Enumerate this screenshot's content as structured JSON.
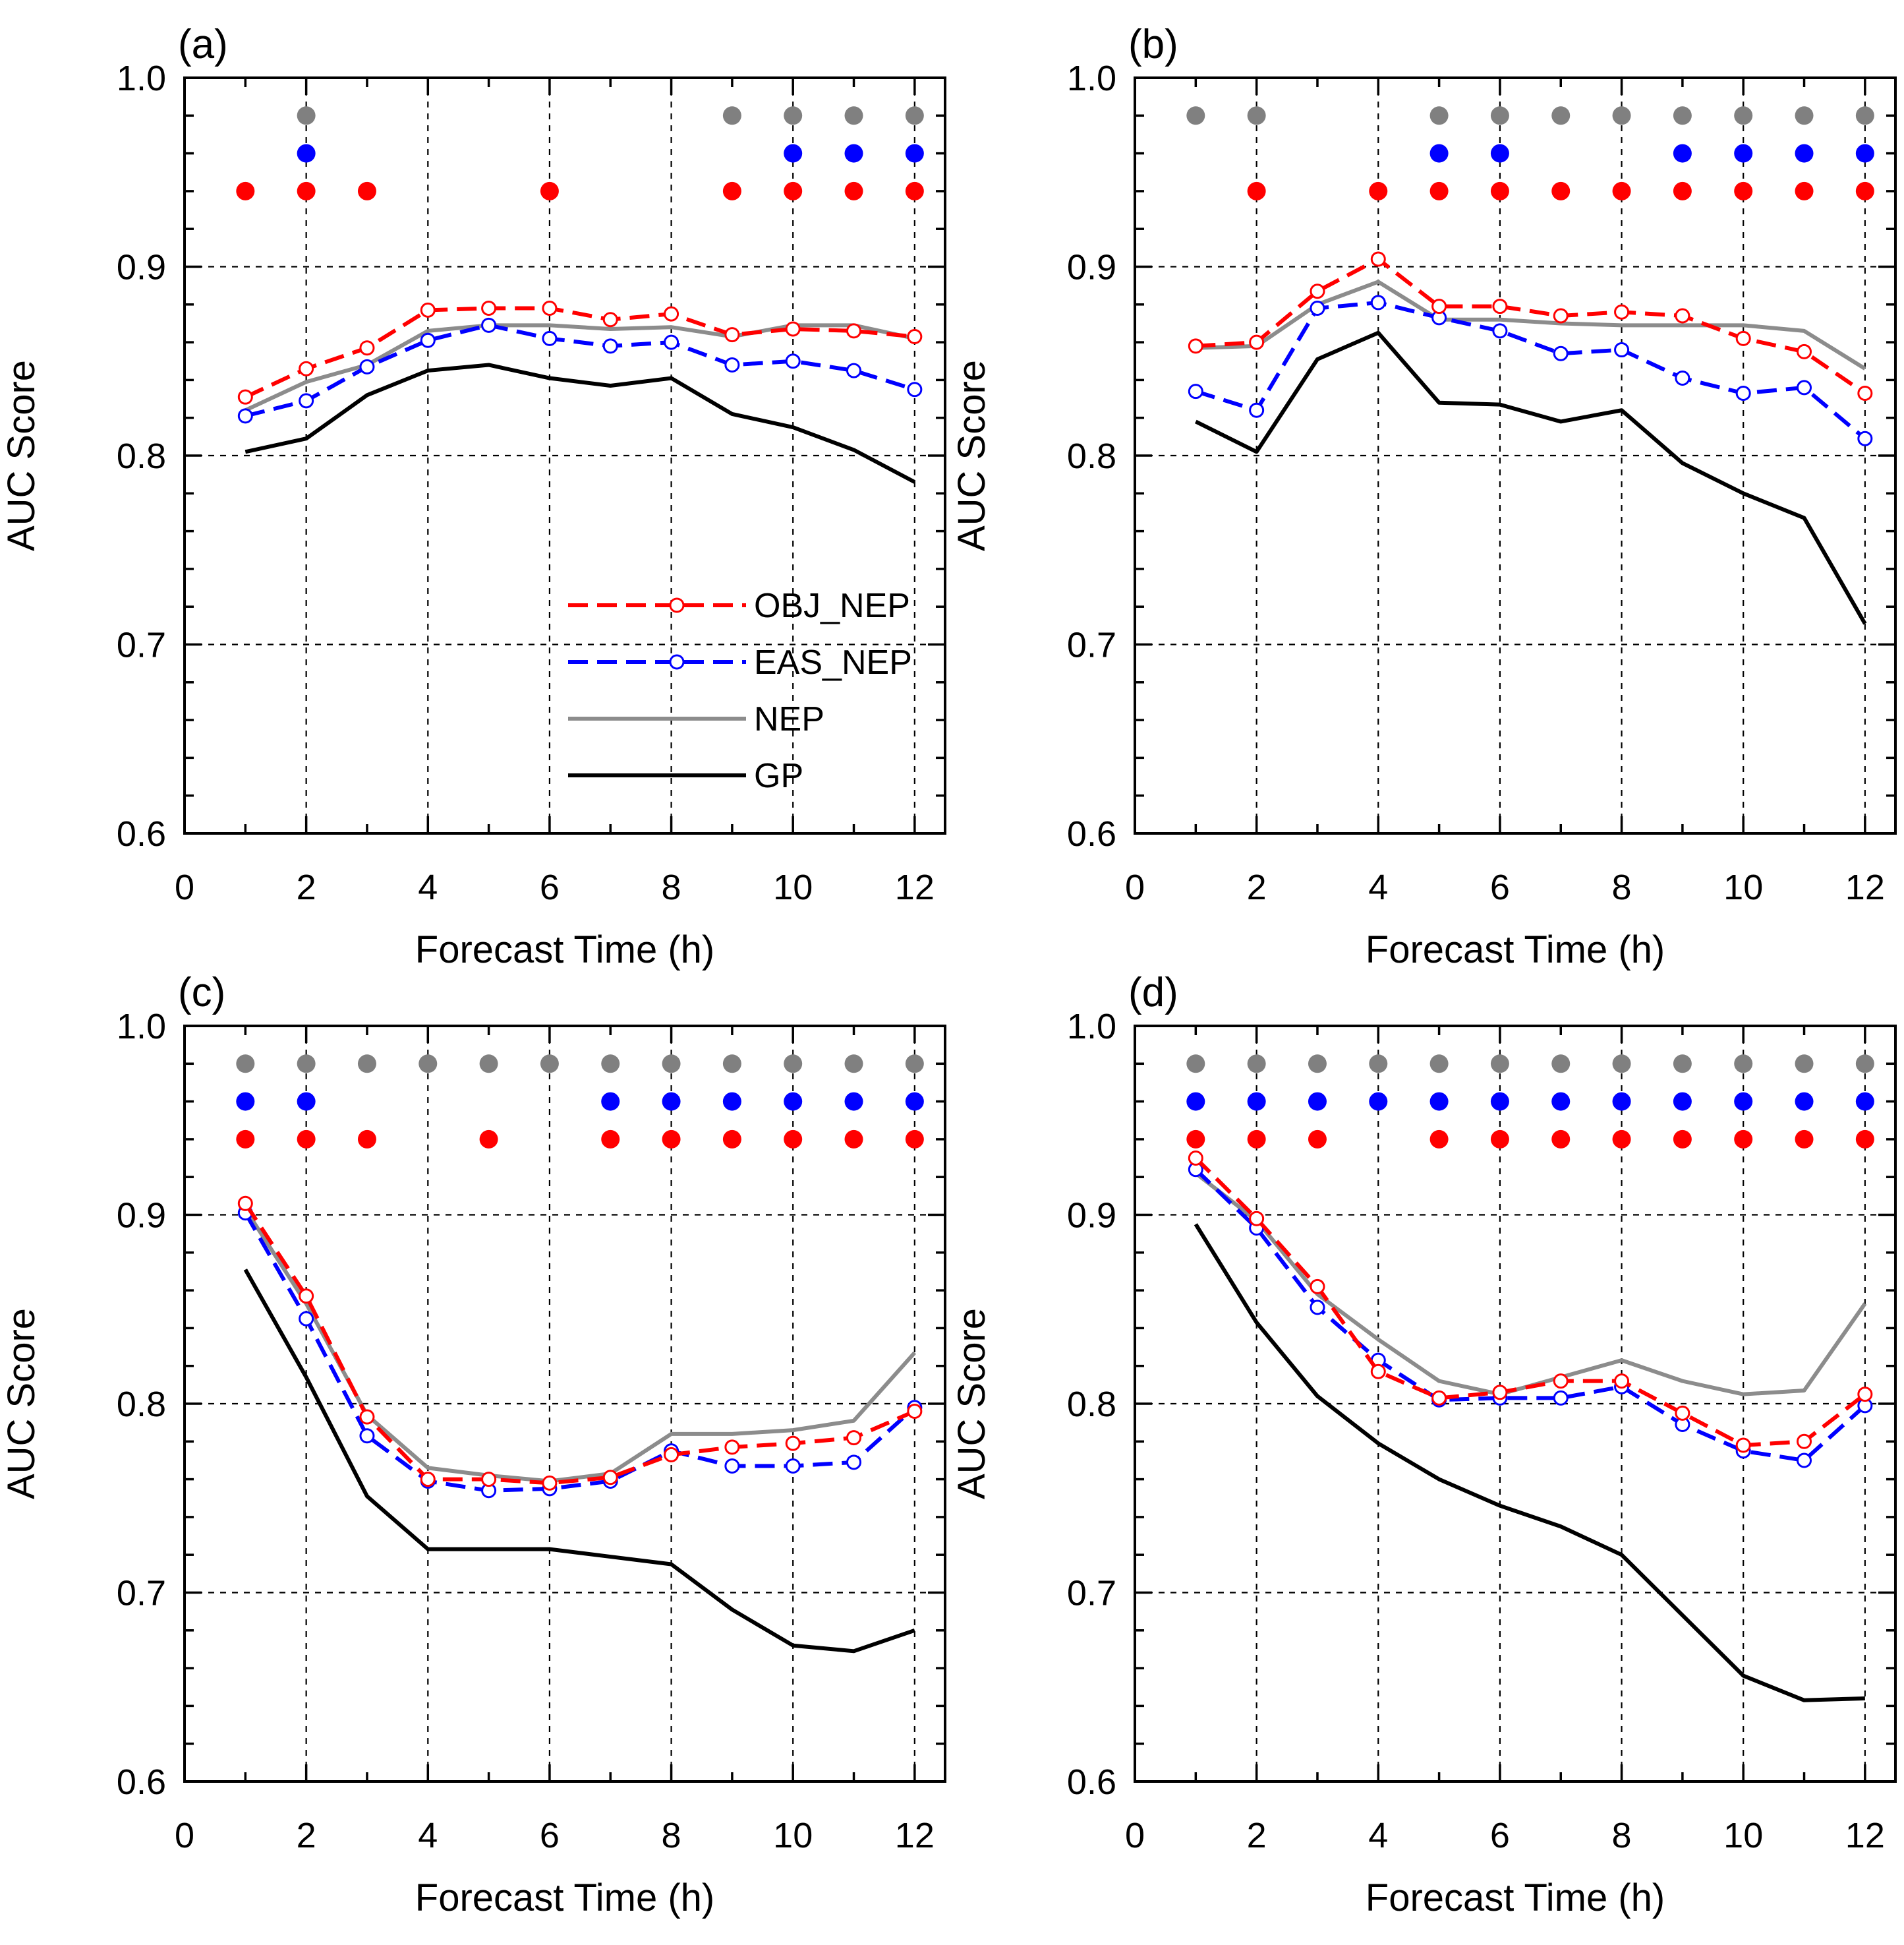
{
  "chart_data": [
    {
      "type": "line",
      "title": "(a)",
      "xlabel": "Forecast Time (h)",
      "ylabel": "AUC Score",
      "xlim": [
        0,
        12.5
      ],
      "ylim": [
        0.6,
        1.0
      ],
      "xticks": [
        "0",
        "2",
        "4",
        "6",
        "8",
        "10",
        "12"
      ],
      "yticks": [
        "0.6",
        "0.7",
        "0.8",
        "0.9",
        "1.0"
      ],
      "grid": true,
      "legend": "inside-center-right",
      "x": [
        1,
        2,
        3,
        4,
        5,
        6,
        7,
        8,
        9,
        10,
        11,
        12
      ],
      "series": [
        {
          "name": "OBJ_NEP",
          "values": [
            0.831,
            0.846,
            0.857,
            0.877,
            0.878,
            0.878,
            0.872,
            0.875,
            0.864,
            0.867,
            0.866,
            0.863
          ]
        },
        {
          "name": "EAS_NEP",
          "values": [
            0.821,
            0.829,
            0.847,
            0.861,
            0.869,
            0.862,
            0.858,
            0.86,
            0.848,
            0.85,
            0.845,
            0.835
          ]
        },
        {
          "name": "NEP",
          "values": [
            0.824,
            0.839,
            0.848,
            0.866,
            0.869,
            0.869,
            0.867,
            0.868,
            0.863,
            0.869,
            0.869,
            0.862
          ]
        },
        {
          "name": "GP",
          "values": [
            0.802,
            0.809,
            0.832,
            0.845,
            0.848,
            0.841,
            0.837,
            0.841,
            0.822,
            0.815,
            0.803,
            0.786
          ]
        }
      ],
      "significance": {
        "gray": [
          2,
          9,
          10,
          11,
          12
        ],
        "blue": [
          2,
          10,
          11,
          12
        ],
        "red": [
          1,
          2,
          3,
          6,
          9,
          10,
          11,
          12
        ]
      }
    },
    {
      "type": "line",
      "title": "(b)",
      "xlabel": "Forecast Time (h)",
      "ylabel": "AUC Score",
      "xlim": [
        0,
        12.5
      ],
      "ylim": [
        0.6,
        1.0
      ],
      "xticks": [
        "0",
        "2",
        "4",
        "6",
        "8",
        "10",
        "12"
      ],
      "yticks": [
        "0.6",
        "0.7",
        "0.8",
        "0.9",
        "1.0"
      ],
      "grid": true,
      "x": [
        1,
        2,
        3,
        4,
        5,
        6,
        7,
        8,
        9,
        10,
        11,
        12
      ],
      "series": [
        {
          "name": "OBJ_NEP",
          "values": [
            0.858,
            0.86,
            0.887,
            0.904,
            0.879,
            0.879,
            0.874,
            0.876,
            0.874,
            0.862,
            0.855,
            0.833
          ]
        },
        {
          "name": "EAS_NEP",
          "values": [
            0.834,
            0.824,
            0.878,
            0.881,
            0.873,
            0.866,
            0.854,
            0.856,
            0.841,
            0.833,
            0.836,
            0.809
          ]
        },
        {
          "name": "NEP",
          "values": [
            0.857,
            0.858,
            0.88,
            0.892,
            0.872,
            0.872,
            0.87,
            0.869,
            0.869,
            0.869,
            0.866,
            0.846
          ]
        },
        {
          "name": "GP",
          "values": [
            0.818,
            0.802,
            0.851,
            0.865,
            0.828,
            0.827,
            0.818,
            0.824,
            0.796,
            0.78,
            0.767,
            0.711
          ]
        }
      ],
      "significance": {
        "gray": [
          1,
          2,
          5,
          6,
          7,
          8,
          9,
          10,
          11,
          12
        ],
        "blue": [
          5,
          6,
          9,
          10,
          11,
          12
        ],
        "red": [
          2,
          4,
          5,
          6,
          7,
          8,
          9,
          10,
          11,
          12
        ]
      }
    },
    {
      "type": "line",
      "title": "(c)",
      "xlabel": "Forecast Time (h)",
      "ylabel": "AUC Score",
      "xlim": [
        0,
        12.5
      ],
      "ylim": [
        0.6,
        1.0
      ],
      "xticks": [
        "0",
        "2",
        "4",
        "6",
        "8",
        "10",
        "12"
      ],
      "yticks": [
        "0.6",
        "0.7",
        "0.8",
        "0.9",
        "1.0"
      ],
      "grid": true,
      "x": [
        1,
        2,
        3,
        4,
        5,
        6,
        7,
        8,
        9,
        10,
        11,
        12
      ],
      "series": [
        {
          "name": "OBJ_NEP",
          "values": [
            0.906,
            0.857,
            0.793,
            0.76,
            0.76,
            0.758,
            0.761,
            0.773,
            0.777,
            0.779,
            0.782,
            0.796
          ]
        },
        {
          "name": "EAS_NEP",
          "values": [
            0.901,
            0.845,
            0.783,
            0.759,
            0.754,
            0.755,
            0.759,
            0.775,
            0.767,
            0.767,
            0.769,
            0.798
          ]
        },
        {
          "name": "NEP",
          "values": [
            0.903,
            0.853,
            0.794,
            0.766,
            0.762,
            0.759,
            0.763,
            0.784,
            0.784,
            0.786,
            0.791,
            0.827
          ]
        },
        {
          "name": "GP",
          "values": [
            0.871,
            0.814,
            0.751,
            0.723,
            0.723,
            0.723,
            0.719,
            0.715,
            0.691,
            0.672,
            0.669,
            0.68
          ]
        }
      ],
      "significance": {
        "gray": [
          1,
          2,
          3,
          4,
          5,
          6,
          7,
          8,
          9,
          10,
          11,
          12
        ],
        "blue": [
          1,
          2,
          7,
          8,
          9,
          10,
          11,
          12
        ],
        "red": [
          1,
          2,
          3,
          5,
          7,
          8,
          9,
          10,
          11,
          12
        ]
      }
    },
    {
      "type": "line",
      "title": "(d)",
      "xlabel": "Forecast Time (h)",
      "ylabel": "AUC Score",
      "xlim": [
        0,
        12.5
      ],
      "ylim": [
        0.6,
        1.0
      ],
      "xticks": [
        "0",
        "2",
        "4",
        "6",
        "8",
        "10",
        "12"
      ],
      "yticks": [
        "0.6",
        "0.7",
        "0.8",
        "0.9",
        "1.0"
      ],
      "grid": true,
      "x": [
        1,
        2,
        3,
        4,
        5,
        6,
        7,
        8,
        9,
        10,
        11,
        12
      ],
      "series": [
        {
          "name": "OBJ_NEP",
          "values": [
            0.93,
            0.898,
            0.862,
            0.817,
            0.803,
            0.806,
            0.812,
            0.812,
            0.795,
            0.778,
            0.78,
            0.805
          ]
        },
        {
          "name": "EAS_NEP",
          "values": [
            0.924,
            0.893,
            0.851,
            0.823,
            0.802,
            0.803,
            0.803,
            0.809,
            0.789,
            0.775,
            0.77,
            0.799
          ]
        },
        {
          "name": "NEP",
          "values": [
            0.922,
            0.897,
            0.858,
            0.834,
            0.812,
            0.805,
            0.814,
            0.823,
            0.812,
            0.805,
            0.807,
            0.853
          ]
        },
        {
          "name": "GP",
          "values": [
            0.895,
            0.843,
            0.804,
            0.779,
            0.76,
            0.746,
            0.735,
            0.72,
            0.688,
            0.656,
            0.643,
            0.644
          ]
        }
      ],
      "significance": {
        "gray": [
          1,
          2,
          3,
          4,
          5,
          6,
          7,
          8,
          9,
          10,
          11,
          12
        ],
        "blue": [
          1,
          2,
          3,
          4,
          5,
          6,
          7,
          8,
          9,
          10,
          11,
          12
        ],
        "red": [
          1,
          2,
          3,
          5,
          6,
          7,
          8,
          9,
          10,
          11,
          12
        ]
      }
    }
  ],
  "legend": {
    "entries": [
      "OBJ_NEP",
      "EAS_NEP",
      "NEP",
      "GP"
    ]
  },
  "colors": {
    "OBJ_NEP": "#ff0000",
    "EAS_NEP": "#0000ff",
    "NEP": "#8c8c8c",
    "GP": "#000000",
    "dot_gray": "#808080",
    "dot_blue": "#0000ff",
    "dot_red": "#ff0000"
  }
}
